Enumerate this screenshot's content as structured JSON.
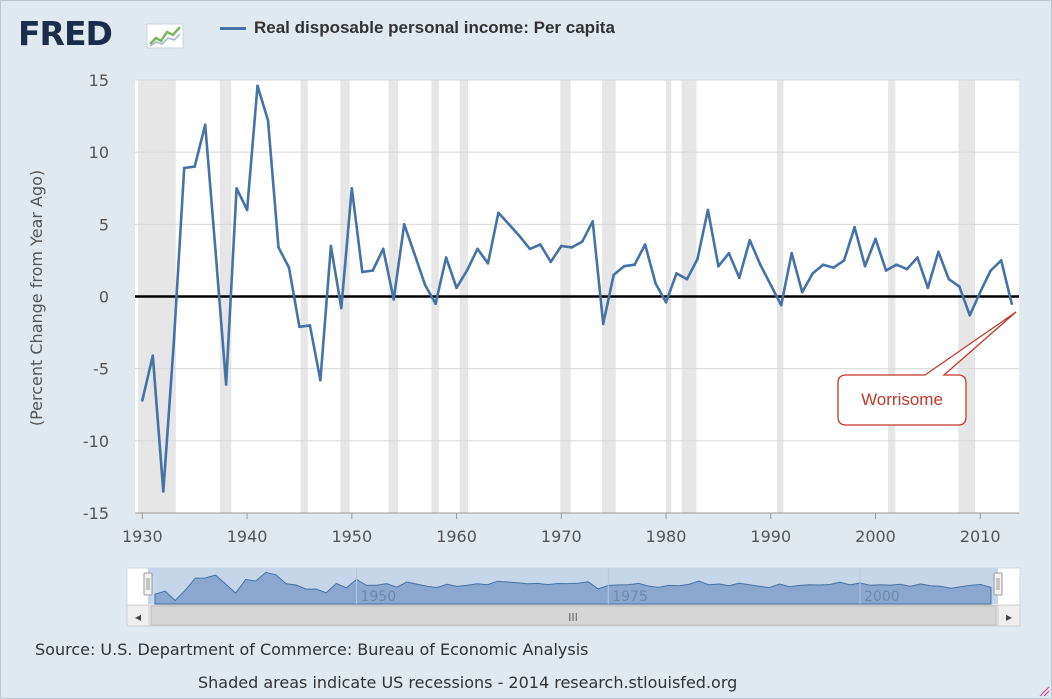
{
  "logo": {
    "text": "FRED"
  },
  "legend": {
    "label": "Real disposable personal income: Per capita",
    "color": "#4572a7"
  },
  "source_text": "Source: U.S. Department of Commerce: Bureau of Economic Analysis",
  "shade_text": "Shaded areas indicate US recessions - 2014 research.stlouisfed.org",
  "annotation": {
    "text": "Worrisome",
    "color": "#c0392b"
  },
  "navigator": {
    "labels": [
      "1950",
      "1975",
      "2000"
    ],
    "scroll_center_glyph": "III",
    "left_arrow": "◂",
    "right_arrow": "▸"
  },
  "chart_data": {
    "type": "line",
    "title": "Real disposable personal income: Per capita",
    "xlabel": "",
    "ylabel": "(Percent Change from Year Ago)",
    "xlim": [
      1929.3,
      2013.7
    ],
    "ylim": [
      -15,
      15
    ],
    "yticks": [
      -15,
      -10,
      -5,
      0,
      5,
      10,
      15
    ],
    "xticks": [
      1930,
      1940,
      1950,
      1960,
      1970,
      1980,
      1990,
      2000,
      2010
    ],
    "grid": true,
    "zero_line": true,
    "recessions": [
      [
        1929.6,
        1933.2
      ],
      [
        1937.4,
        1938.5
      ],
      [
        1945.1,
        1945.8
      ],
      [
        1948.9,
        1949.8
      ],
      [
        1953.5,
        1954.4
      ],
      [
        1957.6,
        1958.3
      ],
      [
        1960.3,
        1961.1
      ],
      [
        1969.9,
        1970.9
      ],
      [
        1973.9,
        1975.2
      ],
      [
        1980.0,
        1980.5
      ],
      [
        1981.5,
        1982.9
      ],
      [
        1990.6,
        1991.2
      ],
      [
        2001.2,
        2001.9
      ],
      [
        2007.9,
        2009.5
      ]
    ],
    "series": [
      {
        "name": "Real disposable personal income: Per capita",
        "color": "#4572a7",
        "x": [
          1930,
          1931,
          1932,
          1933,
          1934,
          1935,
          1936,
          1937,
          1938,
          1939,
          1940,
          1941,
          1942,
          1943,
          1944,
          1945,
          1946,
          1947,
          1948,
          1949,
          1950,
          1951,
          1952,
          1953,
          1954,
          1955,
          1956,
          1957,
          1958,
          1959,
          1960,
          1961,
          1962,
          1963,
          1964,
          1965,
          1966,
          1967,
          1968,
          1969,
          1970,
          1971,
          1972,
          1973,
          1974,
          1975,
          1976,
          1977,
          1978,
          1979,
          1980,
          1981,
          1982,
          1983,
          1984,
          1985,
          1986,
          1987,
          1988,
          1989,
          1990,
          1991,
          1992,
          1993,
          1994,
          1995,
          1996,
          1997,
          1998,
          1999,
          2000,
          2001,
          2002,
          2003,
          2004,
          2005,
          2006,
          2007,
          2008,
          2009,
          2010,
          2011,
          2012,
          2013
        ],
        "values": [
          -7.2,
          -4.1,
          -13.5,
          -3.2,
          8.9,
          9.0,
          11.9,
          3.1,
          -6.1,
          7.5,
          6.0,
          14.6,
          12.2,
          3.4,
          2.0,
          -2.1,
          -2.0,
          -5.8,
          3.5,
          -0.8,
          7.5,
          1.7,
          1.8,
          3.3,
          -0.2,
          5.0,
          2.9,
          0.8,
          -0.5,
          2.7,
          0.6,
          1.8,
          3.3,
          2.3,
          5.8,
          5.0,
          4.2,
          3.3,
          3.6,
          2.4,
          3.5,
          3.4,
          3.8,
          5.2,
          -1.9,
          1.5,
          2.1,
          2.2,
          3.6,
          0.9,
          -0.4,
          1.6,
          1.2,
          2.6,
          6.0,
          2.1,
          3.0,
          1.3,
          3.9,
          2.2,
          0.8,
          -0.6,
          3.0,
          0.3,
          1.6,
          2.2,
          2.0,
          2.5,
          4.8,
          2.1,
          4.0,
          1.8,
          2.2,
          1.9,
          2.7,
          0.6,
          3.1,
          1.2,
          0.7,
          -1.3,
          0.3,
          1.8,
          2.5,
          -0.5
        ]
      }
    ]
  }
}
